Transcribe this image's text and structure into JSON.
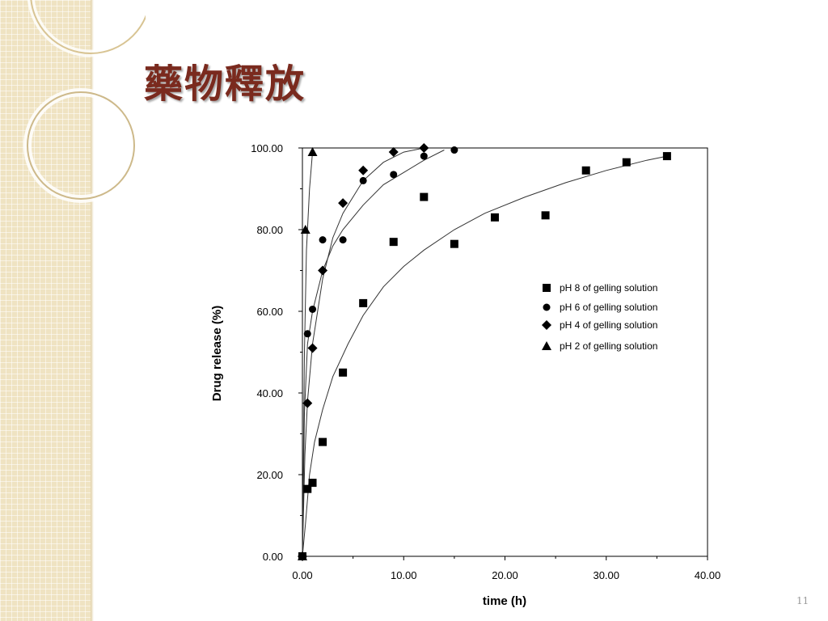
{
  "slide": {
    "title": "藥物釋放",
    "number": "11"
  },
  "colors": {
    "sidebar": "#efe3c2",
    "title": "#7a2a1e"
  },
  "chart_data": {
    "type": "scatter",
    "xlabel": "time (h)",
    "ylabel": "Drug release (%)",
    "xlim": [
      0,
      40
    ],
    "ylim": [
      0,
      100
    ],
    "x_ticks": [
      "0.00",
      "10.00",
      "20.00",
      "30.00",
      "40.00"
    ],
    "y_ticks": [
      "0.00",
      "20.00",
      "40.00",
      "60.00",
      "80.00",
      "100.00"
    ],
    "legend_position": "right-middle",
    "series": [
      {
        "name": "pH 8 of gelling solution",
        "marker": "square",
        "points": [
          [
            0,
            0
          ],
          [
            0.5,
            16.5
          ],
          [
            1,
            18
          ],
          [
            2,
            28
          ],
          [
            4,
            45
          ],
          [
            6,
            62
          ],
          [
            9,
            77
          ],
          [
            12,
            88
          ],
          [
            15,
            76.5
          ],
          [
            19,
            83
          ],
          [
            24,
            83.5
          ],
          [
            28,
            94.5
          ],
          [
            32,
            96.5
          ],
          [
            36,
            98
          ]
        ],
        "fit": [
          [
            0,
            0
          ],
          [
            0.3,
            8
          ],
          [
            0.7,
            20
          ],
          [
            1.2,
            28
          ],
          [
            2,
            36
          ],
          [
            3,
            44
          ],
          [
            4.5,
            52
          ],
          [
            6,
            59
          ],
          [
            8,
            66
          ],
          [
            10,
            71
          ],
          [
            12,
            75
          ],
          [
            15,
            80
          ],
          [
            18,
            84
          ],
          [
            22,
            88
          ],
          [
            26,
            91.5
          ],
          [
            30,
            94.5
          ],
          [
            34,
            97
          ],
          [
            36,
            98
          ]
        ]
      },
      {
        "name": "pH 6 of gelling solution",
        "marker": "circle",
        "points": [
          [
            0,
            0
          ],
          [
            0.5,
            54.5
          ],
          [
            1,
            60.5
          ],
          [
            2,
            77.5
          ],
          [
            4,
            77.5
          ],
          [
            6,
            92
          ],
          [
            9,
            93.5
          ],
          [
            12,
            98
          ],
          [
            15,
            99.5
          ]
        ],
        "fit": [
          [
            0,
            0
          ],
          [
            0.2,
            35
          ],
          [
            0.5,
            52
          ],
          [
            1,
            60
          ],
          [
            2,
            70
          ],
          [
            3,
            76
          ],
          [
            4,
            80
          ],
          [
            6,
            86
          ],
          [
            8,
            91
          ],
          [
            10,
            94
          ],
          [
            12,
            97
          ],
          [
            14,
            99.5
          ]
        ]
      },
      {
        "name": "pH 4 of gelling solution",
        "marker": "diamond",
        "points": [
          [
            0,
            0
          ],
          [
            0.5,
            37.5
          ],
          [
            1,
            51
          ],
          [
            2,
            70
          ],
          [
            4,
            86.5
          ],
          [
            6,
            94.5
          ],
          [
            9,
            99
          ],
          [
            12,
            100
          ]
        ],
        "fit": [
          [
            0,
            0
          ],
          [
            0.25,
            25
          ],
          [
            0.5,
            38
          ],
          [
            1,
            52
          ],
          [
            2,
            68
          ],
          [
            3,
            78
          ],
          [
            4,
            84
          ],
          [
            6,
            92
          ],
          [
            8,
            96.5
          ],
          [
            10,
            99
          ],
          [
            12,
            100
          ]
        ]
      },
      {
        "name": "pH 2 of gelling solution",
        "marker": "triangle",
        "points": [
          [
            0,
            0
          ],
          [
            0.3,
            80
          ],
          [
            1,
            99
          ]
        ],
        "fit": [
          [
            0,
            0
          ],
          [
            0.2,
            50
          ],
          [
            0.4,
            75
          ],
          [
            0.7,
            90
          ],
          [
            1,
            99
          ]
        ]
      }
    ]
  }
}
